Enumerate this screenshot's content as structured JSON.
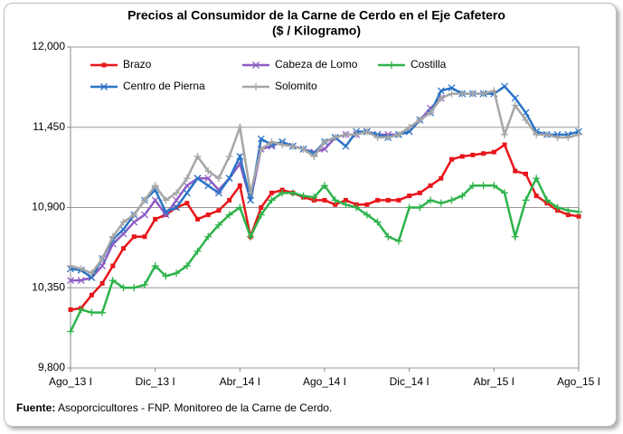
{
  "chart_data": {
    "type": "line",
    "title": "Precios al Consumidor de la Carne de Cerdo en el Eje Cafetero",
    "subtitle": "($ / Kilogramo)",
    "categories": [
      "Ago_13 I",
      null,
      null,
      null,
      null,
      null,
      null,
      null,
      "Dic_13 I",
      null,
      null,
      null,
      null,
      null,
      null,
      null,
      "Abr_14 I",
      null,
      null,
      null,
      null,
      null,
      null,
      null,
      "Ago_14 I",
      null,
      null,
      null,
      null,
      null,
      null,
      null,
      "Dic_14 I",
      null,
      null,
      null,
      null,
      null,
      null,
      null,
      "Abr_15 I",
      null,
      null,
      null,
      null,
      null,
      null,
      null,
      "Ago_15 I"
    ],
    "ylim": [
      9800,
      12000
    ],
    "yticks": [
      {
        "value": 9800,
        "label": "9,800"
      },
      {
        "value": 10350,
        "label": "10,350"
      },
      {
        "value": 10900,
        "label": "10,900"
      },
      {
        "value": 11450,
        "label": "11,450"
      },
      {
        "value": 12000,
        "label": "12,000"
      }
    ],
    "grid": true,
    "series": [
      {
        "name": "Brazo",
        "color": "#e8161b",
        "marker": "square",
        "values": [
          10200,
          10210,
          10300,
          10380,
          10500,
          10620,
          10700,
          10700,
          10820,
          10850,
          10900,
          10930,
          10820,
          10850,
          10880,
          10950,
          11050,
          10700,
          10900,
          11000,
          11020,
          11000,
          10970,
          10950,
          10950,
          10920,
          10950,
          10920,
          10920,
          10950,
          10950,
          10950,
          10980,
          11000,
          11050,
          11100,
          11230,
          11250,
          11260,
          11270,
          11280,
          11330,
          11150,
          11130,
          10980,
          10930,
          10880,
          10850,
          10840
        ]
      },
      {
        "name": "Cabeza de Lomo",
        "color": "#8e5cc4",
        "marker": "x",
        "values": [
          10400,
          10400,
          10420,
          10500,
          10650,
          10720,
          10800,
          10850,
          10950,
          10850,
          10950,
          11050,
          11100,
          11100,
          11020,
          11100,
          11200,
          10950,
          11300,
          11320,
          11350,
          11320,
          11300,
          11280,
          11300,
          11380,
          11400,
          11400,
          11420,
          11400,
          11400,
          11400,
          11420,
          11500,
          11580,
          11650,
          null,
          null,
          null,
          null,
          null,
          null,
          null,
          null,
          null,
          null,
          null,
          null,
          null
        ]
      },
      {
        "name": "Costilla",
        "color": "#2db34a",
        "marker": "plus",
        "values": [
          10050,
          10200,
          10180,
          10180,
          10400,
          10350,
          10350,
          10370,
          10500,
          10430,
          10450,
          10500,
          10600,
          10700,
          10780,
          10850,
          10900,
          10700,
          10850,
          10950,
          11000,
          11000,
          10980,
          10970,
          11050,
          10950,
          10920,
          10900,
          10850,
          10800,
          10700,
          10670,
          10900,
          10900,
          10950,
          10930,
          10950,
          10980,
          11050,
          11050,
          11050,
          11000,
          10700,
          10950,
          11100,
          10950,
          10900,
          10880,
          10870
        ]
      },
      {
        "name": "Centro de Pierna",
        "color": "#2a73c7",
        "marker": "x",
        "values": [
          10480,
          10470,
          10420,
          10550,
          10680,
          10750,
          10850,
          10950,
          11020,
          10870,
          10900,
          11000,
          11100,
          11050,
          11000,
          11100,
          11250,
          10950,
          11370,
          11330,
          11350,
          11320,
          11300,
          11270,
          11350,
          11380,
          11320,
          11420,
          11420,
          11400,
          11380,
          11400,
          11420,
          11500,
          11550,
          11700,
          11720,
          11680,
          11680,
          11680,
          11680,
          11730,
          11650,
          11550,
          11420,
          11400,
          11400,
          11400,
          11420
        ]
      },
      {
        "name": "Solomito",
        "color": "#a6a6a6",
        "marker": "plus",
        "values": [
          10500,
          10480,
          10450,
          10550,
          10700,
          10800,
          10850,
          10950,
          11050,
          10950,
          11000,
          11100,
          11250,
          11150,
          11100,
          11250,
          11450,
          11000,
          11300,
          11350,
          11330,
          11320,
          11300,
          11250,
          11350,
          11380,
          11400,
          11400,
          11420,
          11380,
          11380,
          11400,
          11450,
          11500,
          11550,
          11650,
          11680,
          11680,
          11680,
          11680,
          11700,
          11400,
          11600,
          11500,
          11400,
          11400,
          11380,
          11380,
          11400
        ]
      }
    ],
    "source_label": "Fuente:",
    "source_text": " Asoporcicultores - FNP. Monitoreo de la Carne de Cerdo."
  }
}
